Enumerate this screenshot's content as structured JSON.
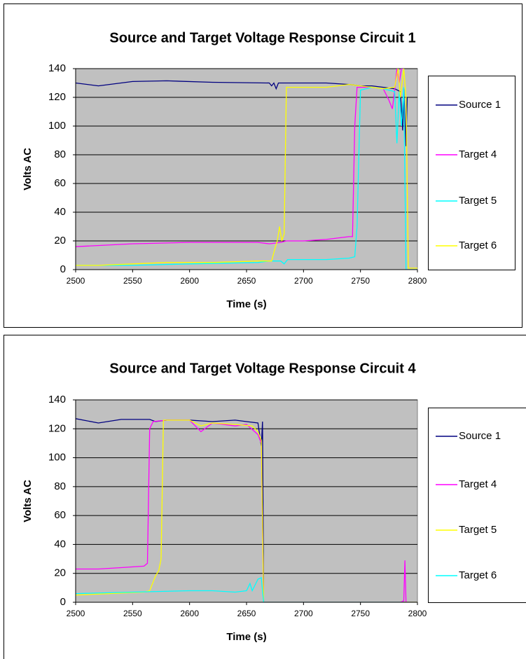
{
  "chart_data": [
    {
      "type": "line",
      "title": "Source and Target Voltage Response Circuit 1",
      "xlabel": "Time (s)",
      "ylabel": "Volts AC",
      "xlim": [
        2500,
        2800
      ],
      "xticks": [
        2500,
        2550,
        2600,
        2650,
        2700,
        2750,
        2800
      ],
      "ylim": [
        0,
        140
      ],
      "yticks": [
        0,
        20,
        40,
        60,
        80,
        100,
        120,
        140
      ],
      "grid": true,
      "legend": "right",
      "series": [
        {
          "name": "Source 1",
          "color": "#000080",
          "x": [
            2500,
            2520,
            2550,
            2580,
            2620,
            2670,
            2672,
            2674,
            2676,
            2678,
            2700,
            2720,
            2740,
            2750,
            2760,
            2770,
            2780,
            2785,
            2787,
            2788,
            2790,
            2791
          ],
          "values": [
            130,
            128,
            131,
            131.5,
            130.5,
            130,
            128,
            130,
            126,
            130,
            130,
            130,
            129,
            128,
            128,
            127,
            126,
            124,
            97,
            126,
            86,
            120
          ]
        },
        {
          "name": "Target 4",
          "color": "#ff00ff",
          "x": [
            2500,
            2550,
            2600,
            2660,
            2670,
            2680,
            2685,
            2700,
            2720,
            2740,
            2743,
            2745,
            2747,
            2760,
            2770,
            2775,
            2778,
            2780,
            2782,
            2784,
            2786,
            2788
          ],
          "values": [
            16,
            18,
            19,
            19,
            18,
            19,
            20,
            20,
            21,
            23,
            23,
            100,
            127,
            127,
            126,
            118,
            112,
            125,
            140,
            130,
            140,
            140
          ]
        },
        {
          "name": "Target 5",
          "color": "#00ffff",
          "x": [
            2500,
            2550,
            2600,
            2660,
            2670,
            2680,
            2683,
            2686,
            2720,
            2740,
            2745,
            2747,
            2750,
            2760,
            2770,
            2780,
            2782,
            2784,
            2786,
            2788,
            2790,
            2800
          ],
          "values": [
            3,
            3,
            4,
            5,
            6,
            6,
            4,
            7,
            7,
            8,
            9,
            30,
            125,
            127,
            126,
            124,
            88,
            124,
            100,
            127,
            0,
            0
          ]
        },
        {
          "name": "Target 6",
          "color": "#ffff00",
          "x": [
            2500,
            2520,
            2550,
            2580,
            2620,
            2660,
            2672,
            2675,
            2677,
            2679,
            2681,
            2683,
            2685,
            2700,
            2720,
            2740,
            2750,
            2760,
            2770,
            2780,
            2783,
            2785,
            2788,
            2790,
            2792,
            2800
          ],
          "values": [
            3,
            3,
            4,
            5,
            5,
            6,
            6,
            15,
            20,
            30,
            20,
            25,
            127,
            127,
            127,
            129,
            128,
            127,
            126,
            127,
            140,
            120,
            140,
            120,
            1,
            1
          ]
        }
      ]
    },
    {
      "type": "line",
      "title": "Source and Target Voltage Response Circuit 4",
      "xlabel": "Time (s)",
      "ylabel": "Volts AC",
      "xlim": [
        2500,
        2800
      ],
      "xticks": [
        2500,
        2550,
        2600,
        2650,
        2700,
        2750,
        2800
      ],
      "ylim": [
        0,
        140
      ],
      "yticks": [
        0,
        20,
        40,
        60,
        80,
        100,
        120,
        140
      ],
      "grid": true,
      "legend": "right",
      "series": [
        {
          "name": "Source 1",
          "color": "#000080",
          "x": [
            2500,
            2520,
            2540,
            2565,
            2570,
            2580,
            2600,
            2620,
            2640,
            2650,
            2660,
            2663,
            2664,
            2665,
            2800
          ],
          "values": [
            127,
            124,
            126.5,
            126.5,
            125,
            126,
            126,
            125,
            126,
            125,
            124,
            108,
            125,
            0,
            0
          ]
        },
        {
          "name": "Target 4",
          "color": "#ff00ff",
          "x": [
            2500,
            2520,
            2540,
            2560,
            2563,
            2565,
            2568,
            2580,
            2600,
            2610,
            2620,
            2640,
            2650,
            2660,
            2663,
            2665,
            2785,
            2788,
            2789,
            2790
          ],
          "values": [
            23,
            23,
            24,
            25,
            27,
            120,
            125,
            126,
            126,
            118,
            124,
            122,
            123,
            116,
            110,
            0,
            0,
            1,
            29,
            0
          ]
        },
        {
          "name": "Target 5",
          "color": "#ffff00",
          "x": [
            2500,
            2560,
            2565,
            2570,
            2573,
            2575,
            2577,
            2600,
            2610,
            2620,
            2640,
            2655,
            2660,
            2663,
            2665,
            2800
          ],
          "values": [
            5,
            7,
            8,
            18,
            22,
            30,
            126,
            126,
            122,
            124,
            123,
            122,
            118,
            112,
            0,
            0
          ]
        },
        {
          "name": "Target 6",
          "color": "#00ffff",
          "x": [
            2500,
            2550,
            2600,
            2620,
            2640,
            2650,
            2653,
            2655,
            2660,
            2663,
            2665,
            2780,
            2788
          ],
          "values": [
            6,
            7,
            8,
            8,
            7,
            8,
            13,
            8,
            16,
            17,
            0,
            0,
            0
          ]
        }
      ]
    }
  ]
}
